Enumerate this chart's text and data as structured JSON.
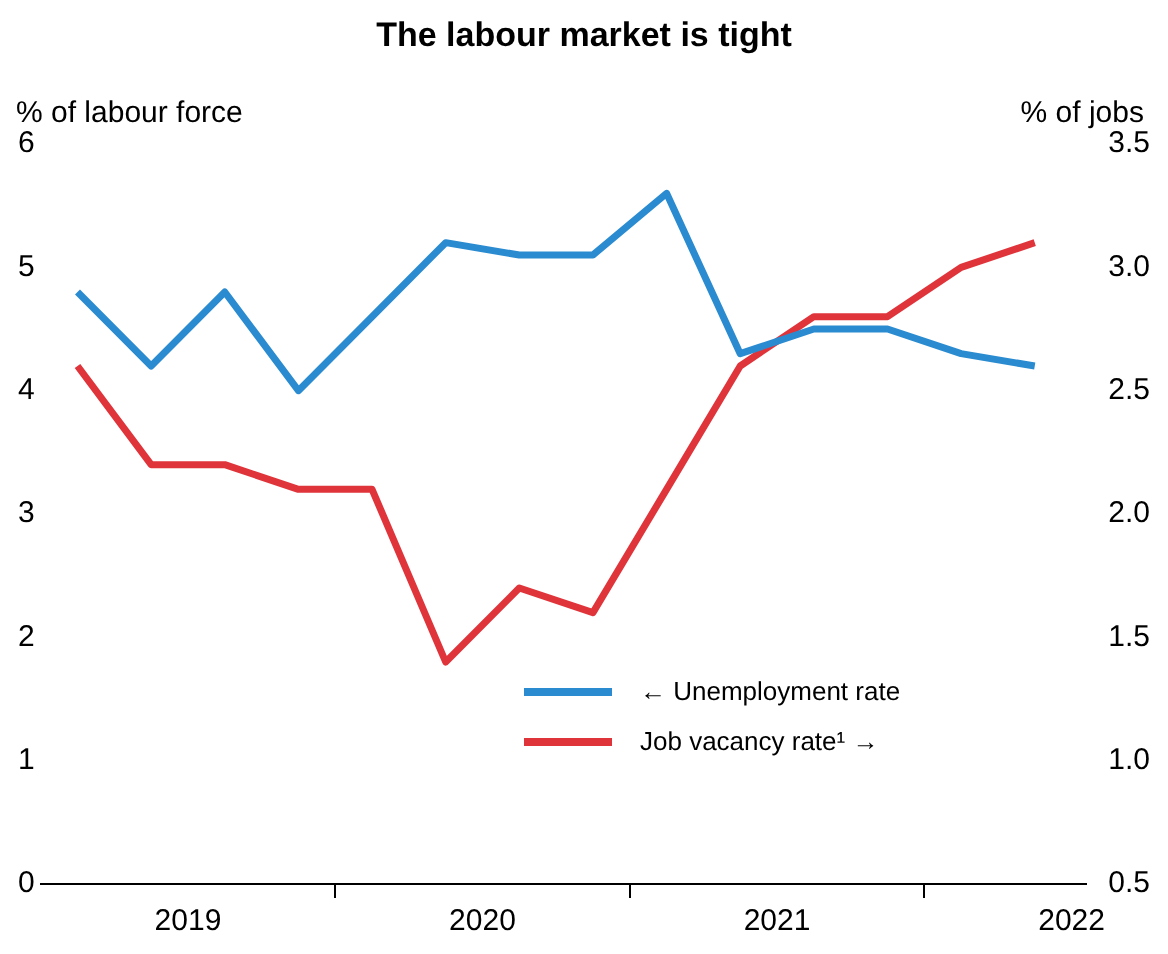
{
  "chart_data": {
    "type": "line",
    "title": "The labour market is tight",
    "ylabel": "% of labour force",
    "y2label": "% of jobs",
    "x": [
      2019.125,
      2019.375,
      2019.625,
      2019.875,
      2020.125,
      2020.375,
      2020.625,
      2020.875,
      2021.125,
      2021.375,
      2021.625,
      2021.875,
      2022.125,
      2022.375
    ],
    "series": [
      {
        "name": "← Unemployment rate",
        "color": "#2a8bd0",
        "values": [
          4.8,
          4.2,
          4.8,
          4.0,
          4.6,
          5.2,
          5.1,
          5.1,
          5.6,
          4.3,
          4.5,
          4.5,
          4.3,
          4.2
        ]
      },
      {
        "name": "Job vacancy rate¹ →",
        "color": "#e0343b",
        "axis": "y2",
        "values": [
          2.6,
          2.2,
          2.2,
          2.1,
          2.1,
          1.4,
          1.7,
          1.6,
          2.1,
          2.6,
          2.8,
          2.8,
          3.0,
          3.1
        ]
      }
    ],
    "xlim": [
      2019,
      2022.55
    ],
    "xticks": [
      {
        "value": 2019.5,
        "label": "2019"
      },
      {
        "value": 2020,
        "label": null
      },
      {
        "value": 2020.5,
        "label": "2020"
      },
      {
        "value": 2021,
        "label": null
      },
      {
        "value": 2021.5,
        "label": "2021"
      },
      {
        "value": 2022,
        "label": null
      },
      {
        "value": 2022.5,
        "label": "2022"
      }
    ],
    "ylim": [
      0,
      6
    ],
    "yticks": [
      0,
      1,
      2,
      3,
      4,
      5,
      6
    ],
    "y2lim": [
      0.5,
      3.5
    ],
    "y2ticks": [
      0.5,
      {
        "value": 1,
        "label": "1.0"
      },
      1.5,
      {
        "value": 2,
        "label": "2.0"
      },
      2.5,
      {
        "value": 3,
        "label": "3.0"
      },
      3.5
    ],
    "grid": false,
    "legend": "bottom right",
    "marker": "none",
    "line_style": "solid"
  }
}
